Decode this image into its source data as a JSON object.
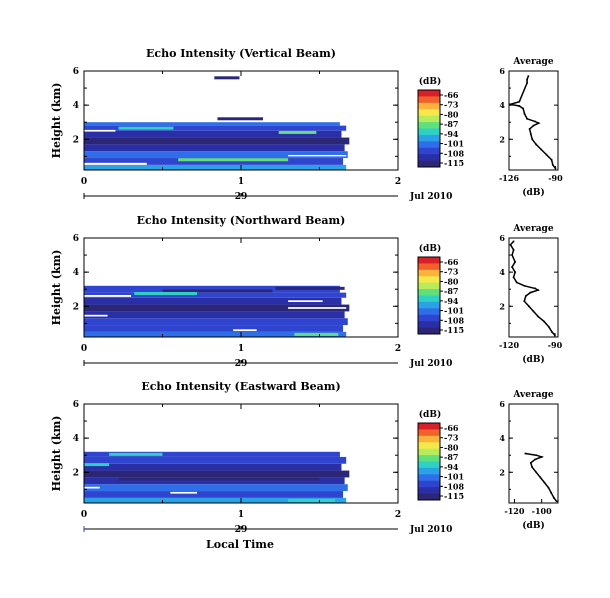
{
  "colorbar": {
    "unit": "(dB)",
    "ticks": [
      "-66",
      "-73",
      "-80",
      "-87",
      "-94",
      "-101",
      "-108",
      "-115"
    ],
    "colors": [
      "#d7202a",
      "#f3612b",
      "#fcb23c",
      "#f5e84a",
      "#b9ec5a",
      "#5fe07c",
      "#2fd1c4",
      "#2aa2e6",
      "#2f6ee9",
      "#2f45cf",
      "#2a2fa8",
      "#2b2776"
    ]
  },
  "time_axis": {
    "ticks": [
      "0",
      "1",
      "2"
    ],
    "day_label": "29",
    "month_year": "Jul 2010",
    "xlabel": "Local Time"
  },
  "chart_data": [
    {
      "type": "heatmap",
      "title": "Echo Intensity (Vertical Beam)",
      "ylabel": "Height (km)",
      "xlim": [
        0,
        2
      ],
      "ylim": [
        0.2,
        6
      ],
      "yticks": [
        "2",
        "4",
        "6"
      ],
      "data_x_range": [
        0,
        1.67
      ],
      "bands": [
        {
          "y": [
            0.2,
            0.5
          ],
          "v": -97
        },
        {
          "y": [
            0.5,
            0.9
          ],
          "v": -104
        },
        {
          "y": [
            0.9,
            1.3
          ],
          "v": -101
        },
        {
          "y": [
            1.3,
            1.7
          ],
          "v": -108
        },
        {
          "y": [
            1.7,
            2.1
          ],
          "v": -112
        },
        {
          "y": [
            2.1,
            2.5
          ],
          "v": -109
        },
        {
          "y": [
            2.5,
            2.8
          ],
          "v": -104
        },
        {
          "y": [
            2.8,
            3.0
          ],
          "v": -99
        }
      ],
      "streaks": [
        {
          "y": 5.6,
          "x": [
            0.83,
            0.99
          ],
          "v": -113
        },
        {
          "y": 3.2,
          "x": [
            0.85,
            1.14
          ],
          "v": -113
        },
        {
          "y": 2.65,
          "x": [
            0.22,
            0.57
          ],
          "v": -94
        },
        {
          "y": 2.4,
          "x": [
            1.24,
            1.48
          ],
          "v": -90
        },
        {
          "y": 0.8,
          "x": [
            0.6,
            1.3
          ],
          "v": -90
        }
      ],
      "gaps": [
        {
          "y": [
            0.5,
            0.62
          ],
          "x": [
            0.0,
            0.4
          ]
        },
        {
          "y": [
            2.45,
            2.55
          ],
          "x": [
            0.0,
            0.2
          ]
        },
        {
          "y": [
            1.0,
            1.08
          ],
          "x": [
            1.3,
            1.67
          ]
        }
      ],
      "average": {
        "xlim": [
          -126,
          -88
        ],
        "xticks": [
          "-126",
          "-90"
        ],
        "xlabel": "(dB)",
        "title": "Average",
        "points": [
          {
            "h": 5.7,
            "v": -111
          },
          {
            "h": 5.5,
            "v": -112
          },
          {
            "h": 5.3,
            "v": -112
          },
          {
            "h": 4.2,
            "v": -118
          },
          {
            "h": 4.05,
            "v": -125
          },
          {
            "h": 3.95,
            "v": -118
          },
          {
            "h": 3.8,
            "v": -115
          },
          {
            "h": 3.5,
            "v": -114
          },
          {
            "h": 3.2,
            "v": -112
          },
          {
            "h": 3.05,
            "v": -106
          },
          {
            "h": 2.95,
            "v": -103
          },
          {
            "h": 2.8,
            "v": -107
          },
          {
            "h": 2.6,
            "v": -110
          },
          {
            "h": 2.3,
            "v": -109
          },
          {
            "h": 2.0,
            "v": -108
          },
          {
            "h": 1.7,
            "v": -105
          },
          {
            "h": 1.4,
            "v": -101
          },
          {
            "h": 1.1,
            "v": -97
          },
          {
            "h": 0.8,
            "v": -93
          },
          {
            "h": 0.5,
            "v": -92
          },
          {
            "h": 0.3,
            "v": -90
          }
        ]
      }
    },
    {
      "type": "heatmap",
      "title": "Echo Intensity (Northward Beam)",
      "ylabel": "Height (km)",
      "xlim": [
        0,
        2
      ],
      "ylim": [
        0.2,
        6
      ],
      "yticks": [
        "2",
        "4",
        "6"
      ],
      "data_x_range": [
        0,
        1.67
      ],
      "bands": [
        {
          "y": [
            0.2,
            0.5
          ],
          "v": -99
        },
        {
          "y": [
            0.5,
            0.9
          ],
          "v": -106
        },
        {
          "y": [
            0.9,
            1.3
          ],
          "v": -103
        },
        {
          "y": [
            1.3,
            1.7
          ],
          "v": -109
        },
        {
          "y": [
            1.7,
            2.1
          ],
          "v": -112
        },
        {
          "y": [
            2.1,
            2.5
          ],
          "v": -110
        },
        {
          "y": [
            2.5,
            2.8
          ],
          "v": -106
        },
        {
          "y": [
            2.8,
            3.2
          ],
          "v": -103
        }
      ],
      "streaks": [
        {
          "y": 3.05,
          "x": [
            1.22,
            1.66
          ],
          "v": -113
        },
        {
          "y": 2.9,
          "x": [
            0.5,
            1.2
          ],
          "v": -112
        },
        {
          "y": 2.75,
          "x": [
            0.32,
            0.72
          ],
          "v": -94
        },
        {
          "y": 0.35,
          "x": [
            1.34,
            1.62
          ],
          "v": -90
        }
      ],
      "gaps": [
        {
          "y": [
            2.55,
            2.66
          ],
          "x": [
            0.0,
            0.3
          ]
        },
        {
          "y": [
            2.25,
            2.35
          ],
          "x": [
            1.3,
            1.52
          ]
        },
        {
          "y": [
            1.85,
            1.95
          ],
          "x": [
            1.3,
            1.67
          ]
        },
        {
          "y": [
            1.4,
            1.5
          ],
          "x": [
            0.0,
            0.15
          ]
        },
        {
          "y": [
            0.55,
            0.65
          ],
          "x": [
            0.95,
            1.1
          ]
        }
      ],
      "average": {
        "xlim": [
          -120,
          -88
        ],
        "xticks": [
          "-120",
          "-90"
        ],
        "xlabel": "(dB)",
        "title": "Average",
        "points": [
          {
            "h": 5.8,
            "v": -117
          },
          {
            "h": 5.6,
            "v": -119
          },
          {
            "h": 5.3,
            "v": -117
          },
          {
            "h": 5.0,
            "v": -118
          },
          {
            "h": 4.6,
            "v": -116
          },
          {
            "h": 4.3,
            "v": -118
          },
          {
            "h": 4.0,
            "v": -116
          },
          {
            "h": 3.7,
            "v": -117
          },
          {
            "h": 3.4,
            "v": -115
          },
          {
            "h": 3.2,
            "v": -110
          },
          {
            "h": 3.05,
            "v": -103
          },
          {
            "h": 2.95,
            "v": -101
          },
          {
            "h": 2.8,
            "v": -106
          },
          {
            "h": 2.6,
            "v": -109
          },
          {
            "h": 2.3,
            "v": -110
          },
          {
            "h": 2.0,
            "v": -107
          },
          {
            "h": 1.7,
            "v": -104
          },
          {
            "h": 1.4,
            "v": -101
          },
          {
            "h": 1.1,
            "v": -97
          },
          {
            "h": 0.8,
            "v": -94
          },
          {
            "h": 0.5,
            "v": -92
          },
          {
            "h": 0.3,
            "v": -90
          }
        ]
      }
    },
    {
      "type": "heatmap",
      "title": "Echo Intensity (Eastward Beam)",
      "ylabel": "Height (km)",
      "xlim": [
        0,
        2
      ],
      "ylim": [
        0.2,
        6
      ],
      "yticks": [
        "2",
        "4",
        "6"
      ],
      "data_x_range": [
        0,
        1.67
      ],
      "bands": [
        {
          "y": [
            0.2,
            0.5
          ],
          "v": -96
        },
        {
          "y": [
            0.5,
            0.9
          ],
          "v": -103
        },
        {
          "y": [
            0.9,
            1.3
          ],
          "v": -101
        },
        {
          "y": [
            1.3,
            1.7
          ],
          "v": -107
        },
        {
          "y": [
            1.7,
            2.1
          ],
          "v": -111
        },
        {
          "y": [
            2.1,
            2.5
          ],
          "v": -109
        },
        {
          "y": [
            2.5,
            2.9
          ],
          "v": -106
        },
        {
          "y": [
            2.9,
            3.2
          ],
          "v": -104
        }
      ],
      "streaks": [
        {
          "y": 3.05,
          "x": [
            0.16,
            0.5
          ],
          "v": -94
        },
        {
          "y": 2.45,
          "x": [
            0.0,
            0.16
          ],
          "v": -92
        },
        {
          "y": 1.6,
          "x": [
            0.22,
            1.5
          ],
          "v": -112
        },
        {
          "y": 0.35,
          "x": [
            1.3,
            1.6
          ],
          "v": -92
        }
      ],
      "gaps": [
        {
          "y": [
            0.75,
            0.85
          ],
          "x": [
            0.55,
            0.72
          ]
        },
        {
          "y": [
            1.05,
            1.15
          ],
          "x": [
            0.0,
            0.1
          ]
        }
      ],
      "average": {
        "xlim": [
          -124,
          -88
        ],
        "xticks": [
          "-120",
          "-100"
        ],
        "xlabel": "(dB)",
        "title": "Average",
        "points": [
          {
            "h": 3.1,
            "v": -112
          },
          {
            "h": 3.0,
            "v": -104
          },
          {
            "h": 2.9,
            "v": -100
          },
          {
            "h": 2.75,
            "v": -105
          },
          {
            "h": 2.55,
            "v": -108
          },
          {
            "h": 2.3,
            "v": -107
          },
          {
            "h": 2.0,
            "v": -104
          },
          {
            "h": 1.7,
            "v": -101
          },
          {
            "h": 1.4,
            "v": -98
          },
          {
            "h": 1.1,
            "v": -95
          },
          {
            "h": 0.8,
            "v": -93
          },
          {
            "h": 0.5,
            "v": -91
          },
          {
            "h": 0.3,
            "v": -89
          }
        ]
      }
    }
  ]
}
